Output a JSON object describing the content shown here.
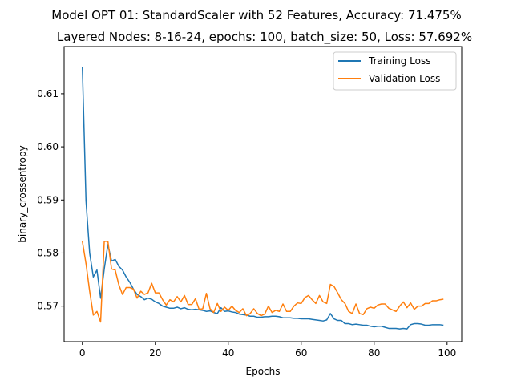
{
  "chart_data": {
    "type": "line",
    "title": "Model OPT 01: StandardScaler with 52 Features, Accuracy: 71.475%",
    "subtitle": "Layered Nodes: 8-16-24, epochs: 100, batch_size: 50, Loss: 57.692%",
    "xlabel": "Epochs",
    "ylabel": "binary_crossentropy",
    "xlim": [
      -5,
      104
    ],
    "ylim": [
      0.5633,
      0.6189
    ],
    "xticks": [
      0,
      20,
      40,
      60,
      80,
      100
    ],
    "yticks": [
      0.57,
      0.58,
      0.59,
      0.6,
      0.61
    ],
    "ytick_labels": [
      "0.57",
      "0.58",
      "0.59",
      "0.60",
      "0.61"
    ],
    "grid": false,
    "legend_position": "top-right",
    "series": [
      {
        "name": "Training Loss",
        "color": "#1f77b4",
        "values": [
          0.615,
          0.5898,
          0.58,
          0.5755,
          0.5768,
          0.5715,
          0.577,
          0.5816,
          0.5785,
          0.5788,
          0.5775,
          0.5768,
          0.5755,
          0.5745,
          0.5732,
          0.5722,
          0.5718,
          0.5712,
          0.5715,
          0.5713,
          0.5708,
          0.5705,
          0.57,
          0.5698,
          0.5696,
          0.5696,
          0.5698,
          0.5695,
          0.5697,
          0.5694,
          0.5693,
          0.5694,
          0.5693,
          0.5692,
          0.569,
          0.5691,
          0.5688,
          0.5686,
          0.5697,
          0.569,
          0.5691,
          0.5689,
          0.5688,
          0.5685,
          0.5684,
          0.5683,
          0.5681,
          0.5681,
          0.5679,
          0.5679,
          0.568,
          0.568,
          0.5681,
          0.5681,
          0.568,
          0.5678,
          0.5678,
          0.5678,
          0.5677,
          0.5677,
          0.5676,
          0.5676,
          0.5676,
          0.5675,
          0.5674,
          0.5673,
          0.5672,
          0.5674,
          0.5686,
          0.5676,
          0.5673,
          0.5673,
          0.5667,
          0.5667,
          0.5665,
          0.5666,
          0.5665,
          0.5664,
          0.5664,
          0.5662,
          0.5661,
          0.5662,
          0.5662,
          0.566,
          0.5658,
          0.5658,
          0.5658,
          0.5657,
          0.5658,
          0.5657,
          0.5665,
          0.5667,
          0.5667,
          0.5666,
          0.5664,
          0.5664,
          0.5665,
          0.5665,
          0.5665,
          0.5664
        ]
      },
      {
        "name": "Validation Loss",
        "color": "#ff7f0e",
        "values": [
          0.5822,
          0.578,
          0.5728,
          0.5683,
          0.569,
          0.567,
          0.5822,
          0.5822,
          0.577,
          0.5768,
          0.574,
          0.5722,
          0.5735,
          0.5735,
          0.5732,
          0.5715,
          0.5728,
          0.5722,
          0.5725,
          0.5743,
          0.5725,
          0.5725,
          0.5712,
          0.5702,
          0.5712,
          0.5708,
          0.5718,
          0.5708,
          0.572,
          0.5703,
          0.5703,
          0.5714,
          0.5694,
          0.5695,
          0.5724,
          0.5695,
          0.5688,
          0.5705,
          0.569,
          0.5698,
          0.5692,
          0.57,
          0.5692,
          0.5688,
          0.5695,
          0.5682,
          0.5686,
          0.5695,
          0.5686,
          0.5682,
          0.5685,
          0.57,
          0.5688,
          0.5692,
          0.569,
          0.5704,
          0.569,
          0.569,
          0.57,
          0.5706,
          0.5705,
          0.5716,
          0.572,
          0.5712,
          0.5705,
          0.572,
          0.5708,
          0.5705,
          0.5741,
          0.5737,
          0.5725,
          0.5712,
          0.5705,
          0.569,
          0.5686,
          0.5704,
          0.5686,
          0.5684,
          0.5695,
          0.5698,
          0.5696,
          0.5702,
          0.5704,
          0.5704,
          0.5696,
          0.5693,
          0.569,
          0.57,
          0.5708,
          0.5697,
          0.5706,
          0.5694,
          0.57,
          0.57,
          0.5705,
          0.5705,
          0.571,
          0.571,
          0.5712,
          0.5713
        ]
      }
    ]
  }
}
